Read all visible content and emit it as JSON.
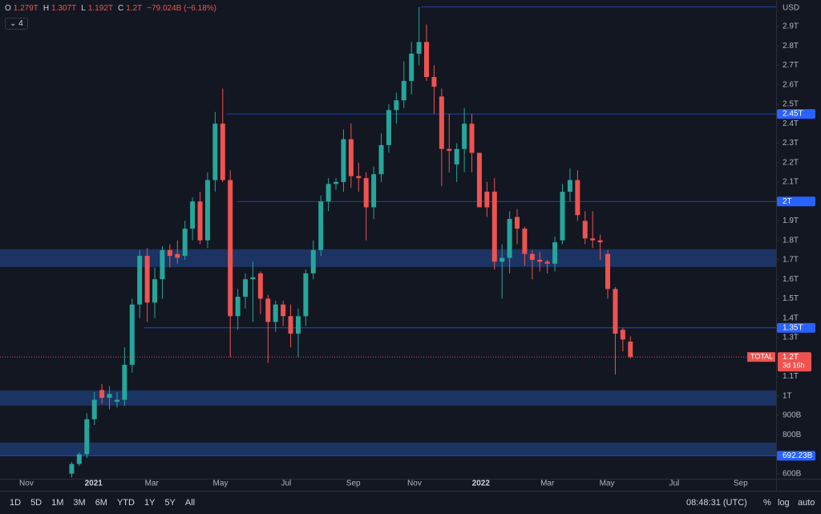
{
  "chart_data": {
    "type": "candlestick",
    "currency": "USD",
    "symbol": "TOTAL",
    "countdown": "3d 16h",
    "indicator_count": "4",
    "legend": {
      "o_key": "O",
      "o": "1.279T",
      "h_key": "H",
      "h": "1.307T",
      "l_key": "L",
      "l": "1.192T",
      "c_key": "C",
      "c": "1.2T",
      "change": "−79.024B (−6.18%)"
    },
    "up_color": "#26a69a",
    "down_color": "#ef5350",
    "x": [
      0,
      1,
      2,
      3,
      4,
      5,
      6,
      7,
      8,
      9,
      10,
      11,
      12,
      13,
      14,
      15,
      16,
      17,
      18,
      19,
      20,
      21,
      22,
      23,
      24,
      25,
      26,
      27,
      28,
      29,
      30,
      31,
      32,
      33,
      34,
      35,
      36,
      37,
      38,
      39,
      40,
      41,
      42,
      43,
      44,
      45,
      46,
      47,
      48,
      49,
      50,
      51,
      52,
      53,
      54,
      55,
      56,
      57,
      58,
      59,
      60,
      61,
      62,
      63,
      64,
      65,
      66,
      67,
      68,
      69,
      70,
      71,
      72,
      73,
      74
    ],
    "open": [
      0.6,
      0.65,
      0.7,
      0.88,
      1.03,
      0.99,
      0.97,
      0.98,
      1.16,
      1.47,
      1.72,
      1.48,
      1.6,
      1.75,
      1.73,
      1.72,
      1.86,
      2.0,
      1.8,
      2.11,
      2.4,
      2.11,
      1.41,
      1.51,
      1.6,
      1.63,
      1.5,
      1.38,
      1.47,
      1.41,
      1.32,
      1.41,
      1.63,
      1.75,
      2.0,
      2.09,
      2.1,
      2.32,
      2.13,
      2.12,
      1.97,
      2.14,
      2.29,
      2.47,
      2.52,
      2.62,
      2.76,
      2.82,
      2.64,
      2.54,
      2.27,
      2.19,
      2.27,
      2.4,
      2.25,
      2.05,
      2.05,
      1.69,
      1.71,
      1.92,
      1.86,
      1.73,
      1.7,
      1.69,
      1.68,
      1.8,
      2.05,
      2.11,
      1.9,
      1.81,
      1.8,
      1.73,
      1.55,
      1.34,
      1.279
    ],
    "high": [
      0.66,
      0.71,
      0.91,
      1.02,
      1.06,
      1.05,
      1.02,
      1.25,
      1.5,
      1.75,
      1.76,
      1.66,
      1.77,
      1.78,
      1.8,
      1.9,
      2.02,
      2.05,
      2.15,
      2.46,
      2.58,
      2.16,
      1.55,
      1.63,
      1.69,
      1.64,
      1.52,
      1.49,
      1.49,
      1.47,
      1.45,
      1.65,
      1.8,
      2.03,
      2.12,
      2.12,
      2.37,
      2.4,
      2.2,
      2.15,
      2.18,
      2.35,
      2.5,
      2.56,
      2.72,
      2.82,
      3.0,
      2.91,
      2.7,
      2.58,
      2.45,
      2.3,
      2.48,
      2.45,
      2.25,
      2.1,
      2.12,
      1.78,
      1.95,
      1.96,
      1.87,
      1.75,
      1.74,
      1.7,
      1.82,
      2.09,
      2.17,
      2.16,
      1.95,
      1.95,
      1.83,
      1.75,
      1.56,
      1.35,
      1.307
    ],
    "low": [
      0.58,
      0.64,
      0.68,
      0.85,
      0.96,
      0.93,
      0.94,
      0.95,
      1.12,
      1.4,
      1.38,
      1.4,
      1.5,
      1.66,
      1.68,
      1.7,
      1.8,
      1.78,
      1.76,
      2.05,
      2.1,
      1.2,
      1.34,
      1.45,
      1.38,
      1.42,
      1.17,
      1.33,
      1.36,
      1.25,
      1.2,
      1.36,
      1.6,
      1.72,
      1.95,
      2.06,
      2.05,
      2.07,
      2.05,
      1.8,
      1.91,
      2.1,
      2.25,
      2.4,
      2.48,
      2.55,
      2.7,
      2.62,
      2.45,
      2.08,
      2.15,
      2.1,
      2.15,
      2.15,
      1.98,
      1.92,
      1.65,
      1.5,
      1.63,
      1.78,
      1.67,
      1.6,
      1.64,
      1.63,
      1.64,
      1.78,
      2.0,
      1.9,
      1.78,
      1.76,
      1.7,
      1.5,
      1.11,
      1.23,
      1.192
    ],
    "close": [
      0.65,
      0.7,
      0.88,
      0.98,
      0.99,
      1.01,
      0.98,
      1.16,
      1.47,
      1.72,
      1.48,
      1.6,
      1.75,
      1.72,
      1.71,
      1.86,
      2.0,
      1.8,
      2.11,
      2.4,
      2.11,
      1.41,
      1.51,
      1.6,
      1.61,
      1.5,
      1.38,
      1.47,
      1.41,
      1.32,
      1.41,
      1.63,
      1.75,
      2.0,
      2.09,
      2.1,
      2.32,
      2.13,
      2.12,
      1.97,
      2.14,
      2.29,
      2.47,
      2.52,
      2.62,
      2.76,
      2.82,
      2.64,
      2.59,
      2.27,
      2.26,
      2.27,
      2.4,
      2.25,
      1.97,
      1.97,
      1.69,
      1.71,
      1.91,
      1.86,
      1.73,
      1.7,
      1.69,
      1.68,
      1.79,
      2.05,
      2.11,
      1.93,
      1.81,
      1.8,
      1.79,
      1.55,
      1.32,
      1.29,
      1.2
    ],
    "price_label": "1.2T",
    "zones": [
      {
        "low": 1.663,
        "high": 1.754
      },
      {
        "low": 0.95,
        "high": 1.028
      },
      {
        "low": 0.694,
        "high": 0.76
      }
    ],
    "levels": [
      {
        "value": 2.45,
        "label": "2.45T"
      },
      {
        "value": 2.0,
        "label": "2T"
      },
      {
        "value": 1.35,
        "label": "1.35T"
      },
      {
        "value": 0.69223,
        "label": "692.23B"
      },
      {
        "value": 3.0
      }
    ],
    "xlim": [
      -9.5,
      93.3
    ],
    "xticks": [
      {
        "value": -6,
        "label": "Nov"
      },
      {
        "value": 2.9,
        "label": "2021"
      },
      {
        "value": 10.6,
        "label": "Mar"
      },
      {
        "value": 19.7,
        "label": "May"
      },
      {
        "value": 28.4,
        "label": "Jul"
      },
      {
        "value": 37.3,
        "label": "Sep"
      },
      {
        "value": 45.4,
        "label": "Nov"
      },
      {
        "value": 54.2,
        "label": "2022"
      },
      {
        "value": 63.0,
        "label": "Mar"
      },
      {
        "value": 70.9,
        "label": "May"
      },
      {
        "value": 79.8,
        "label": "Jul"
      },
      {
        "value": 88.6,
        "label": "Sep"
      }
    ],
    "ylim": [
      0.574,
      3.036
    ],
    "yticks": [
      {
        "value": 0.6,
        "label": "600B"
      },
      {
        "value": 0.8,
        "label": "800B"
      },
      {
        "value": 0.9,
        "label": "900B"
      },
      {
        "value": 1.0,
        "label": "1T"
      },
      {
        "value": 1.1,
        "label": "1.1T"
      },
      {
        "value": 1.3,
        "label": "1.3T"
      },
      {
        "value": 1.4,
        "label": "1.4T"
      },
      {
        "value": 1.5,
        "label": "1.5T"
      },
      {
        "value": 1.6,
        "label": "1.6T"
      },
      {
        "value": 1.7,
        "label": "1.7T"
      },
      {
        "value": 1.8,
        "label": "1.8T"
      },
      {
        "value": 1.9,
        "label": "1.9T"
      },
      {
        "value": 2.1,
        "label": "2.1T"
      },
      {
        "value": 2.2,
        "label": "2.2T"
      },
      {
        "value": 2.3,
        "label": "2.3T"
      },
      {
        "value": 2.4,
        "label": "2.4T"
      },
      {
        "value": 2.5,
        "label": "2.5T"
      },
      {
        "value": 2.6,
        "label": "2.6T"
      },
      {
        "value": 2.7,
        "label": "2.7T"
      },
      {
        "value": 2.8,
        "label": "2.8T"
      },
      {
        "value": 2.9,
        "label": "2.9T"
      }
    ]
  },
  "toolbar": {
    "ranges": [
      "1D",
      "5D",
      "1M",
      "3M",
      "6M",
      "YTD",
      "1Y",
      "5Y",
      "All"
    ],
    "clock": "08:48:31 (UTC)",
    "percent": "%",
    "log": "log",
    "auto": "auto"
  }
}
